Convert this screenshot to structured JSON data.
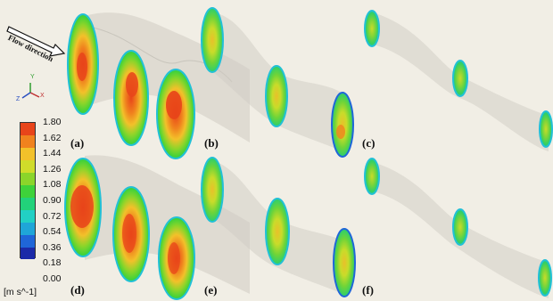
{
  "flow_direction": "Flow direction",
  "panel_labels": [
    "(a)",
    "(b)",
    "(c)",
    "(d)",
    "(e)",
    "(f)"
  ],
  "colorbar": {
    "ticks": [
      "1.80",
      "1.62",
      "1.44",
      "1.26",
      "1.08",
      "0.90",
      "0.72",
      "0.54",
      "0.36",
      "0.18",
      "0.00"
    ],
    "unit": "[m s^-1]",
    "colors": [
      "#1b2aa8",
      "#1f66d8",
      "#1fa6d8",
      "#22d0c4",
      "#22d27a",
      "#3ed23a",
      "#8bd52a",
      "#d0dc2a",
      "#f2c12a",
      "#f0821e",
      "#e8441a"
    ]
  },
  "axis_triad": {
    "x": "X",
    "y": "Y",
    "z": "Z"
  }
}
